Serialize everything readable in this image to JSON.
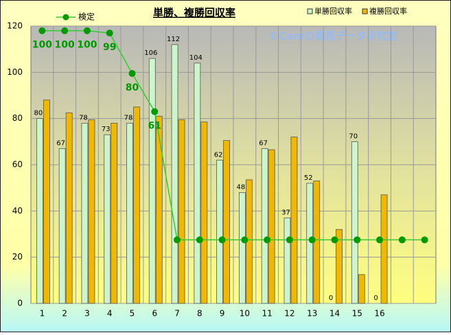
{
  "chart_data": {
    "type": "bar",
    "title": "単勝、複勝回収率",
    "watermark": "©Caniの競馬データ研究室",
    "categories": [
      "1",
      "2",
      "3",
      "4",
      "5",
      "6",
      "7",
      "8",
      "9",
      "10",
      "11",
      "12",
      "13",
      "14",
      "15",
      "16",
      null,
      null
    ],
    "series": [
      {
        "name": "単勝回収率",
        "color": "#ccf5cc",
        "labels": true,
        "values": [
          80,
          67,
          78,
          73,
          78,
          106,
          112,
          104,
          62,
          48,
          67,
          37,
          52,
          0,
          70,
          0,
          null,
          null
        ]
      },
      {
        "name": "複勝回収率",
        "color": "#f0b800",
        "labels": false,
        "values": [
          88,
          82.5,
          79.5,
          78,
          85,
          81,
          79.5,
          78.5,
          70.5,
          53.5,
          66.5,
          72,
          53,
          32,
          12.5,
          47,
          null,
          null
        ]
      },
      {
        "name": "検定",
        "type": "line",
        "color": "#33cc33",
        "marker_color": "#009900",
        "values": [
          118,
          118,
          118,
          117,
          99.5,
          83,
          27.5,
          27.5,
          27.5,
          27.5,
          27.5,
          27.5,
          27.5,
          27.5,
          27.5,
          27.5,
          27.5,
          27.5
        ],
        "point_labels": [
          100,
          100,
          100,
          99,
          80,
          61
        ]
      }
    ],
    "ylim": [
      0,
      120
    ],
    "yticks": [
      0,
      20,
      40,
      60,
      80,
      100,
      120
    ],
    "grid": true,
    "legend": "top"
  }
}
